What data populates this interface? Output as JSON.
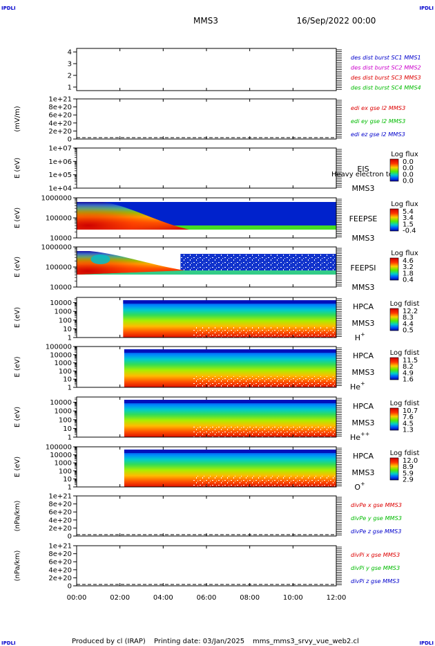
{
  "header": {
    "corner_mark": "IPDLI",
    "spacecraft": "MMS3",
    "datetime": "16/Sep/2022 00:00"
  },
  "footer": {
    "produced_by": "Produced by cl (IRAP)",
    "printing_date": "Printing date: 03/Jan/2025",
    "script_name": "mms_mms3_srvy_vue_web2.cl"
  },
  "time_axis": {
    "ticks": [
      "00:00",
      "02:00",
      "04:00",
      "06:00",
      "08:00",
      "10:00",
      "12:00"
    ],
    "range_hours": [
      0,
      12
    ]
  },
  "colors": {
    "blue": "#0000cc",
    "magenta": "#cc00cc",
    "red": "#dd0000",
    "green": "#00bb00"
  },
  "chart_data": [
    {
      "type": "line",
      "ylabel": "",
      "yticks": [
        "1",
        "2",
        "3",
        "4"
      ],
      "ylim": [
        0.7,
        4.3
      ],
      "legend": [
        {
          "label": "des dist burst SC1 MMS1",
          "color": "#0000cc"
        },
        {
          "label": "des dist burst SC2 MMS2",
          "color": "#cc00cc"
        },
        {
          "label": "des dist burst SC3 MMS3",
          "color": "#dd0000"
        },
        {
          "label": "des dist burst SC4 MMS4",
          "color": "#00bb00"
        }
      ],
      "series": []
    },
    {
      "type": "line",
      "ylabel": "(mV/m)",
      "yticks": [
        "0",
        "2e+20",
        "4e+20",
        "6e+20",
        "8e+20",
        "1e+21"
      ],
      "ylim": [
        0,
        1e+21
      ],
      "zero_line": true,
      "legend": [
        {
          "label": "edi ex gse l2 MMS3",
          "color": "#dd0000"
        },
        {
          "label": "edi ey gse l2 MMS3",
          "color": "#00bb00"
        },
        {
          "label": "edi ez gse l2 MMS3",
          "color": "#0000cc"
        }
      ],
      "series": []
    },
    {
      "type": "heatmap",
      "ylabel": "E (eV)",
      "yscale": "log",
      "yticks": [
        "1e+04",
        "1e+05",
        "1e+06",
        "1e+07"
      ],
      "ylim": [
        10000.0,
        10000000.0
      ],
      "instrument": "EIS",
      "overlap_text": "Heavy electron to",
      "spacecraft": "MMS3",
      "colorbar_title": "Log flux",
      "colorbar_ticks": [
        "0.0",
        "0.0",
        "0.0",
        "0.0"
      ],
      "fill": "none"
    },
    {
      "type": "heatmap",
      "ylabel": "E (eV)",
      "yscale": "log",
      "yticks": [
        "10000",
        "100000",
        "1000000"
      ],
      "ylim": [
        10000,
        1000000
      ],
      "instrument": "FEEPSE",
      "spacecraft": "MMS3",
      "colorbar_title": "Log flux",
      "colorbar_ticks": [
        "5.4",
        "3.4",
        "1.5",
        "-0.4"
      ],
      "fill": "feepse"
    },
    {
      "type": "heatmap",
      "ylabel": "E (eV)",
      "yscale": "log",
      "yticks": [
        "10000",
        "100000",
        "1000000"
      ],
      "ylim": [
        10000,
        1000000
      ],
      "instrument": "FEEPSI",
      "spacecraft": "MMS3",
      "colorbar_title": "Log flux",
      "colorbar_ticks": [
        "4.6",
        "3.2",
        "1.8",
        "0.4"
      ],
      "fill": "feepsi"
    },
    {
      "type": "heatmap",
      "ylabel": "E (eV)",
      "yscale": "log",
      "yticks": [
        "1",
        "10",
        "100",
        "1000",
        "10000"
      ],
      "ylim": [
        1,
        40000
      ],
      "instrument": "HPCA",
      "spacecraft": "MMS3",
      "species": "H",
      "species_sup": "+",
      "colorbar_title": "Log fdist",
      "colorbar_ticks": [
        "12.2",
        "8.3",
        "4.4",
        "0.5"
      ],
      "data_start_hour": 2.15,
      "fill": "hpca"
    },
    {
      "type": "heatmap",
      "ylabel": "E (eV)",
      "yscale": "log",
      "yticks": [
        "1",
        "10",
        "100",
        "1000",
        "10000",
        "100000"
      ],
      "ylim": [
        1,
        100000
      ],
      "instrument": "HPCA",
      "spacecraft": "MMS3",
      "species": "He",
      "species_sup": "+",
      "colorbar_title": "Log fdist",
      "colorbar_ticks": [
        "11.5",
        "8.2",
        "4.9",
        "1.6"
      ],
      "data_start_hour": 2.2,
      "fill": "hpca"
    },
    {
      "type": "heatmap",
      "ylabel": "E (eV)",
      "yscale": "log",
      "yticks": [
        "1",
        "10",
        "100",
        "1000",
        "10000"
      ],
      "ylim": [
        1,
        40000
      ],
      "instrument": "HPCA",
      "spacecraft": "MMS3",
      "species": "He",
      "species_sup": "++",
      "colorbar_title": "Log fdist",
      "colorbar_ticks": [
        "10.7",
        "7.6",
        "4.5",
        "1.3"
      ],
      "data_start_hour": 2.2,
      "fill": "hpca"
    },
    {
      "type": "heatmap",
      "ylabel": "E (eV)",
      "yscale": "log",
      "yticks": [
        "1",
        "10",
        "100",
        "1000",
        "10000",
        "100000"
      ],
      "ylim": [
        1,
        100000
      ],
      "instrument": "HPCA",
      "spacecraft": "MMS3",
      "species": "O",
      "species_sup": "+",
      "colorbar_title": "Log fdist",
      "colorbar_ticks": [
        "12.0",
        "8.9",
        "5.9",
        "2.9"
      ],
      "data_start_hour": 2.2,
      "fill": "hpca"
    },
    {
      "type": "line",
      "ylabel": "(nPa/km)",
      "yticks": [
        "0",
        "2e+20",
        "4e+20",
        "6e+20",
        "8e+20",
        "1e+21"
      ],
      "ylim": [
        0,
        1e+21
      ],
      "zero_line": true,
      "legend": [
        {
          "label": "divPe x gse MMS3",
          "color": "#dd0000"
        },
        {
          "label": "divPe y gse MMS3",
          "color": "#00bb00"
        },
        {
          "label": "divPe z gse MMS3",
          "color": "#0000cc"
        }
      ],
      "series": []
    },
    {
      "type": "line",
      "ylabel": "(nPa/km)",
      "yticks": [
        "0",
        "2e+20",
        "4e+20",
        "6e+20",
        "8e+20",
        "1e+21"
      ],
      "ylim": [
        0,
        1e+21
      ],
      "zero_line": true,
      "legend": [
        {
          "label": "divPi x gse MMS3",
          "color": "#dd0000"
        },
        {
          "label": "divPi y gse MMS3",
          "color": "#00bb00"
        },
        {
          "label": "divPi z gse MMS3",
          "color": "#0000cc"
        }
      ],
      "series": []
    }
  ]
}
